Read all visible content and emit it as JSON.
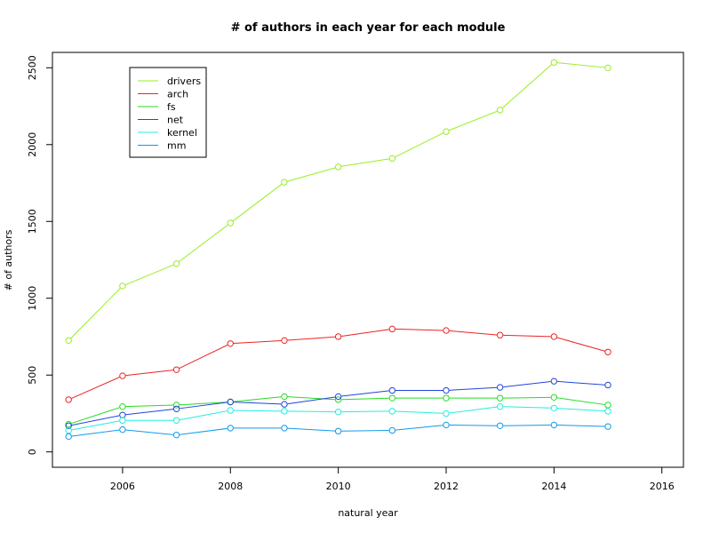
{
  "chart_data": {
    "type": "line",
    "title": "# of authors in each year for each module",
    "xlabel": "natural year",
    "ylabel": "# of authors",
    "xlim": [
      2004.7,
      2016.4
    ],
    "ylim": [
      -100,
      2600
    ],
    "x_ticks": [
      2006,
      2008,
      2010,
      2012,
      2014,
      2016
    ],
    "y_ticks": [
      0,
      500,
      1000,
      1500,
      2000,
      2500
    ],
    "x": [
      2005,
      2006,
      2007,
      2008,
      2009,
      2010,
      2011,
      2012,
      2013,
      2014,
      2015
    ],
    "grid": false,
    "legend_position": "top-left",
    "series": [
      {
        "name": "drivers",
        "color": "#99ee22",
        "values": [
          725,
          1080,
          1225,
          1490,
          1755,
          1855,
          1910,
          2085,
          2225,
          2535,
          2500
        ]
      },
      {
        "name": "arch",
        "color": "#ee2222",
        "values": [
          340,
          495,
          535,
          705,
          725,
          750,
          800,
          790,
          760,
          750,
          650
        ]
      },
      {
        "name": "fs",
        "color": "#22dd22",
        "values": [
          180,
          295,
          305,
          325,
          360,
          340,
          350,
          350,
          350,
          355,
          305
        ]
      },
      {
        "name": "net",
        "color": "#2244dd",
        "values": [
          170,
          240,
          280,
          325,
          310,
          360,
          400,
          400,
          420,
          460,
          435
        ]
      },
      {
        "name": "kernel",
        "color": "#22eedd",
        "values": [
          140,
          205,
          205,
          270,
          265,
          260,
          265,
          250,
          295,
          285,
          265
        ]
      },
      {
        "name": "mm",
        "color": "#1199ee",
        "values": [
          100,
          145,
          110,
          155,
          155,
          135,
          140,
          175,
          170,
          175,
          165
        ]
      }
    ]
  }
}
